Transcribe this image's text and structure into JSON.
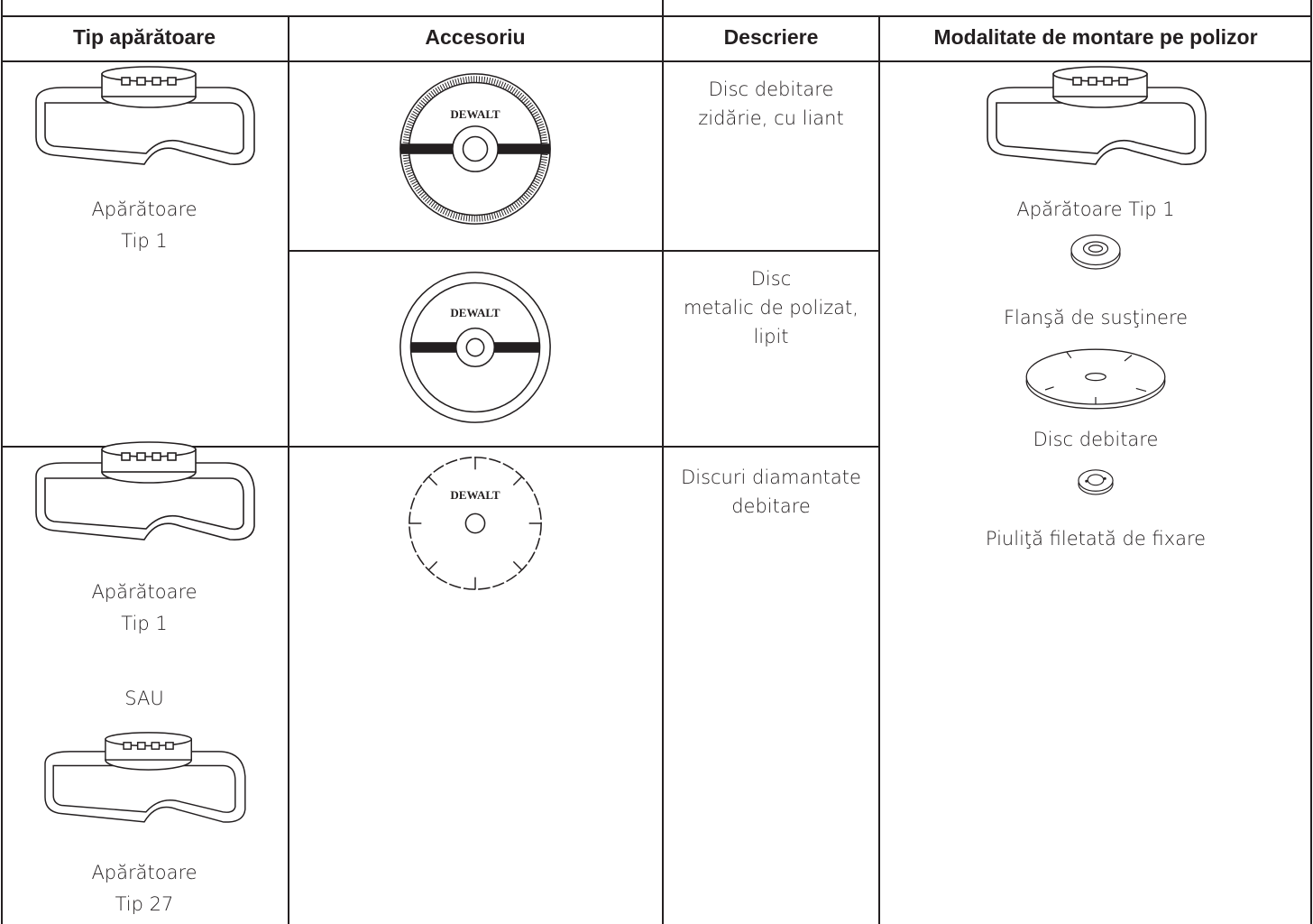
{
  "table": {
    "headers": [
      "Tip apărătoare",
      "Accesoriu",
      "Descriere",
      "Modalitate de montare pe polizor"
    ],
    "guards": [
      {
        "lines": [
          "Apărătoare",
          "Tip 1"
        ]
      },
      {
        "lines": [
          "Apărătoare",
          "Tip 1"
        ],
        "or": "SAU",
        "alt_lines": [
          "Apărătoare",
          "Tip 27"
        ]
      }
    ],
    "accessories": [
      {
        "brand": "DEWALT",
        "description": [
          "Disc debitare",
          "zidărie, cu liant"
        ]
      },
      {
        "brand": "DEWALT",
        "description": [
          "Disc",
          "metalic de polizat,",
          "lipit"
        ]
      },
      {
        "brand": "DEWALT",
        "description": [
          "Discuri diamantate",
          "debitare"
        ]
      }
    ],
    "mounting": [
      "Apărătoare Tip 1",
      "Flanşă de susţinere",
      "Disc debitare",
      "Piuliţă filetată de fixare"
    ]
  }
}
